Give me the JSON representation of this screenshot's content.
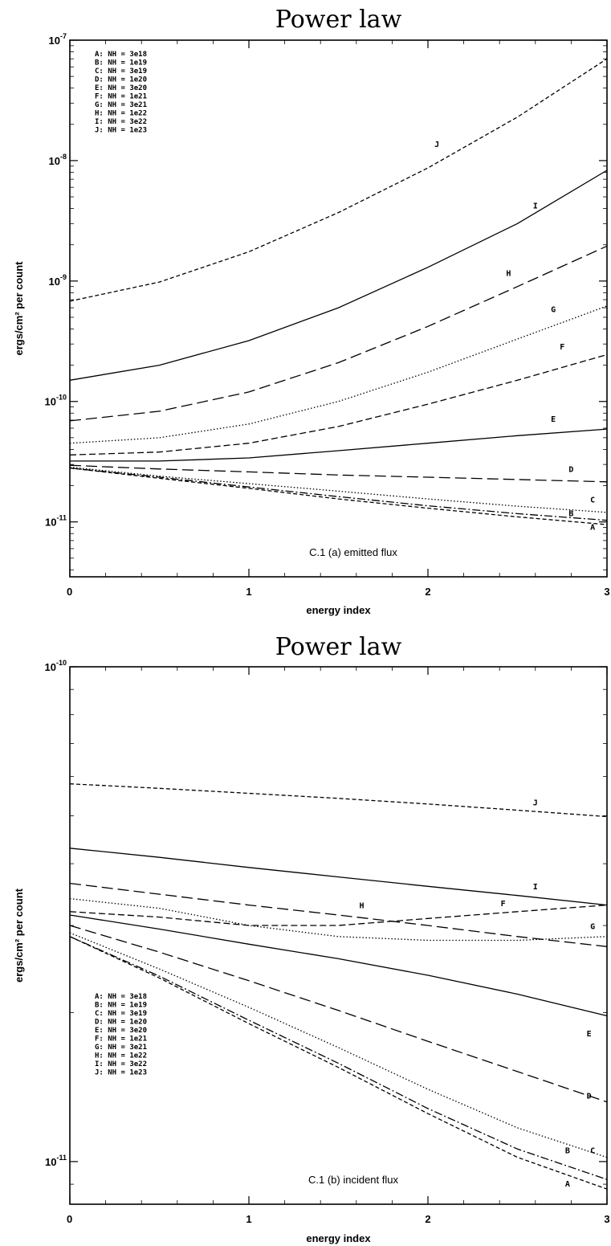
{
  "chart_data": [
    {
      "type": "line",
      "title": "Power law",
      "xlabel": "energy index",
      "ylabel": "ergs/cm² per count",
      "annotation": "C.1 (a) emitted flux",
      "xlim": [
        0,
        3
      ],
      "ylim": [
        3.5e-12,
        1e-07
      ],
      "yscale": "log",
      "x_ticks": [
        "0",
        "1",
        "2",
        "3"
      ],
      "y_ticks": [
        {
          "value": 1e-11,
          "base": "10",
          "exp": "-11"
        },
        {
          "value": 1e-10,
          "base": "10",
          "exp": "-10"
        },
        {
          "value": 1e-09,
          "base": "10",
          "exp": "-9"
        },
        {
          "value": 1e-08,
          "base": "10",
          "exp": "-8"
        },
        {
          "value": 1e-07,
          "base": "10",
          "exp": "-7"
        }
      ],
      "legend": [
        "A: NH = 3e18",
        "B: NH = 1e19",
        "C: NH = 3e19",
        "D: NH = 1e20",
        "E: NH = 3e20",
        "F: NH = 1e21",
        "G: NH = 3e21",
        "H: NH = 1e22",
        "I: NH = 3e22",
        "J: NH = 1e23"
      ],
      "legend_position": "top-left",
      "x": [
        0,
        0.5,
        1,
        1.5,
        2,
        2.5,
        3
      ],
      "series": [
        {
          "name": "A",
          "dash": "5,3",
          "values": [
            2.8e-11,
            2.3e-11,
            1.9e-11,
            1.55e-11,
            1.3e-11,
            1.1e-11,
            9.5e-12
          ]
        },
        {
          "name": "B",
          "dash": "10,3,2,3",
          "values": [
            2.8e-11,
            2.35e-11,
            1.95e-11,
            1.62e-11,
            1.36e-11,
            1.17e-11,
            1.03e-11
          ]
        },
        {
          "name": "C",
          "dash": "1.5,2.5",
          "values": [
            2.85e-11,
            2.4e-11,
            2.08e-11,
            1.8e-11,
            1.55e-11,
            1.35e-11,
            1.2e-11
          ]
        },
        {
          "name": "D",
          "dash": "14,6",
          "values": [
            2.95e-11,
            2.75e-11,
            2.6e-11,
            2.45e-11,
            2.35e-11,
            2.25e-11,
            2.15e-11
          ]
        },
        {
          "name": "E",
          "dash": "",
          "values": [
            3.2e-11,
            3.2e-11,
            3.4e-11,
            3.9e-11,
            4.5e-11,
            5.2e-11,
            5.9e-11
          ]
        },
        {
          "name": "F",
          "dash": "8,4",
          "values": [
            3.6e-11,
            3.8e-11,
            4.5e-11,
            6.2e-11,
            9.5e-11,
            1.5e-10,
            2.45e-10
          ]
        },
        {
          "name": "G",
          "dash": "1.5,2.5",
          "values": [
            4.5e-11,
            5e-11,
            6.5e-11,
            1e-10,
            1.75e-10,
            3.3e-10,
            6.2e-10
          ]
        },
        {
          "name": "H",
          "dash": "14,6",
          "values": [
            6.9e-11,
            8.3e-11,
            1.2e-10,
            2.1e-10,
            4.2e-10,
            9e-10,
            1.95e-09
          ]
        },
        {
          "name": "I",
          "dash": "",
          "values": [
            1.5e-10,
            2e-10,
            3.2e-10,
            6e-10,
            1.3e-09,
            3e-09,
            8.3e-09
          ]
        },
        {
          "name": "J",
          "dash": "5,3",
          "values": [
            6.8e-10,
            9.8e-10,
            1.75e-09,
            3.7e-09,
            8.7e-09,
            2.3e-08,
            7e-08
          ]
        }
      ],
      "curve_labels": [
        {
          "text": "J",
          "x": 2.05,
          "y": 1.3e-08
        },
        {
          "text": "I",
          "x": 2.6,
          "y": 4e-09
        },
        {
          "text": "H",
          "x": 2.45,
          "y": 1.1e-09
        },
        {
          "text": "G",
          "x": 2.7,
          "y": 5.5e-10
        },
        {
          "text": "F",
          "x": 2.75,
          "y": 2.7e-10
        },
        {
          "text": "E",
          "x": 2.7,
          "y": 6.8e-11
        },
        {
          "text": "D",
          "x": 2.8,
          "y": 2.6e-11
        },
        {
          "text": "C",
          "x": 2.92,
          "y": 1.45e-11
        },
        {
          "text": "B",
          "x": 2.8,
          "y": 1.12e-11
        },
        {
          "text": "A",
          "x": 2.92,
          "y": 8.6e-12
        }
      ]
    },
    {
      "type": "line",
      "title": "Power law",
      "xlabel": "energy index",
      "ylabel": "ergs/cm² per count",
      "annotation": "C.1 (b) incident flux",
      "xlim": [
        0,
        3
      ],
      "ylim": [
        8.2e-12,
        1e-10
      ],
      "yscale": "log",
      "x_ticks": [
        "0",
        "1",
        "2",
        "3"
      ],
      "y_ticks": [
        {
          "value": 1e-11,
          "base": "10",
          "exp": "-11"
        },
        {
          "value": 1e-10,
          "base": "10",
          "exp": "-10"
        }
      ],
      "legend": [
        "A: NH = 3e18",
        "B: NH = 1e19",
        "C: NH = 3e19",
        "D: NH = 1e20",
        "E: NH = 3e20",
        "F: NH = 1e21",
        "G: NH = 3e21",
        "H: NH = 1e22",
        "I: NH = 3e22",
        "J: NH = 1e23"
      ],
      "legend_position": "bottom-left",
      "x": [
        0,
        0.5,
        1,
        1.5,
        2,
        2.5,
        3
      ],
      "series": [
        {
          "name": "A",
          "dash": "5,3",
          "values": [
            2.85e-11,
            2.35e-11,
            1.9e-11,
            1.55e-11,
            1.25e-11,
            1.02e-11,
            8.8e-12
          ]
        },
        {
          "name": "B",
          "dash": "10,3,2,3",
          "values": [
            2.85e-11,
            2.37e-11,
            1.93e-11,
            1.58e-11,
            1.28e-11,
            1.06e-11,
            9.2e-12
          ]
        },
        {
          "name": "C",
          "dash": "1.5,2.5",
          "values": [
            2.9e-11,
            2.45e-11,
            2.05e-11,
            1.7e-11,
            1.4e-11,
            1.17e-11,
            1.02e-11
          ]
        },
        {
          "name": "D",
          "dash": "14,6",
          "values": [
            3e-11,
            2.65e-11,
            2.32e-11,
            2.02e-11,
            1.75e-11,
            1.52e-11,
            1.32e-11
          ]
        },
        {
          "name": "E",
          "dash": "",
          "values": [
            3.15e-11,
            2.95e-11,
            2.75e-11,
            2.57e-11,
            2.38e-11,
            2.18e-11,
            1.97e-11
          ]
        },
        {
          "name": "F",
          "dash": "8,4",
          "values": [
            3.2e-11,
            3.12e-11,
            3e-11,
            3e-11,
            3.1e-11,
            3.2e-11,
            3.3e-11
          ]
        },
        {
          "name": "G",
          "dash": "1.5,2.5",
          "values": [
            3.4e-11,
            3.25e-11,
            3e-11,
            2.85e-11,
            2.8e-11,
            2.8e-11,
            2.85e-11
          ]
        },
        {
          "name": "H",
          "dash": "14,6",
          "values": [
            3.65e-11,
            3.47e-11,
            3.3e-11,
            3.15e-11,
            3e-11,
            2.85e-11,
            2.72e-11
          ]
        },
        {
          "name": "I",
          "dash": "",
          "values": [
            4.3e-11,
            4.12e-11,
            3.93e-11,
            3.76e-11,
            3.6e-11,
            3.45e-11,
            3.3e-11
          ]
        },
        {
          "name": "J",
          "dash": "5,3",
          "values": [
            5.8e-11,
            5.68e-11,
            5.55e-11,
            5.42e-11,
            5.28e-11,
            5.13e-11,
            4.98e-11
          ]
        }
      ],
      "curve_labels": [
        {
          "text": "J",
          "x": 2.6,
          "y": 5.25e-11
        },
        {
          "text": "I",
          "x": 2.6,
          "y": 3.55e-11
        },
        {
          "text": "H",
          "x": 1.63,
          "y": 3.25e-11
        },
        {
          "text": "F",
          "x": 2.42,
          "y": 3.28e-11
        },
        {
          "text": "G",
          "x": 2.92,
          "y": 2.95e-11
        },
        {
          "text": "E",
          "x": 2.9,
          "y": 1.79e-11
        },
        {
          "text": "D",
          "x": 2.9,
          "y": 1.34e-11
        },
        {
          "text": "C",
          "x": 2.92,
          "y": 1.04e-11
        },
        {
          "text": "B",
          "x": 2.78,
          "y": 1.04e-11
        },
        {
          "text": "A",
          "x": 2.78,
          "y": 8.9e-12
        }
      ]
    }
  ]
}
